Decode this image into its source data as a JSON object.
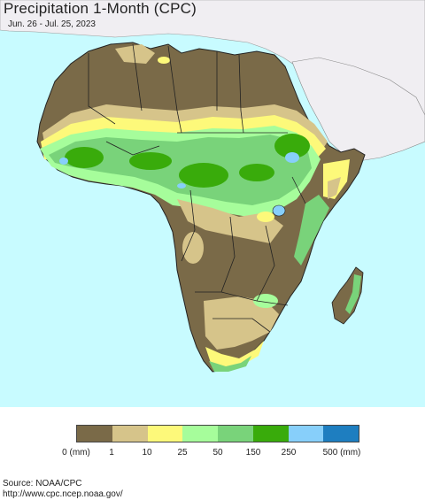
{
  "header": {
    "title": "Precipitation 1-Month (CPC)",
    "subtitle": "Jun. 26 - Jul. 25, 2023"
  },
  "map": {
    "region": "Africa",
    "ocean_color": "#c8fbff",
    "outside_land_color": "#f0eef2"
  },
  "legend": {
    "colors": [
      "#7a6a48",
      "#d6c48a",
      "#fdf97a",
      "#a6fd9b",
      "#79d37a",
      "#39ab0b",
      "#87cffa",
      "#1e7ec0"
    ],
    "labels": [
      "0 (mm)",
      "1",
      "10",
      "25",
      "50",
      "150",
      "250",
      "500 (mm)"
    ]
  },
  "footer": {
    "source_line": "Source: NOAA/CPC",
    "url_line": "http://www.cpc.ncep.noaa.gov/"
  }
}
